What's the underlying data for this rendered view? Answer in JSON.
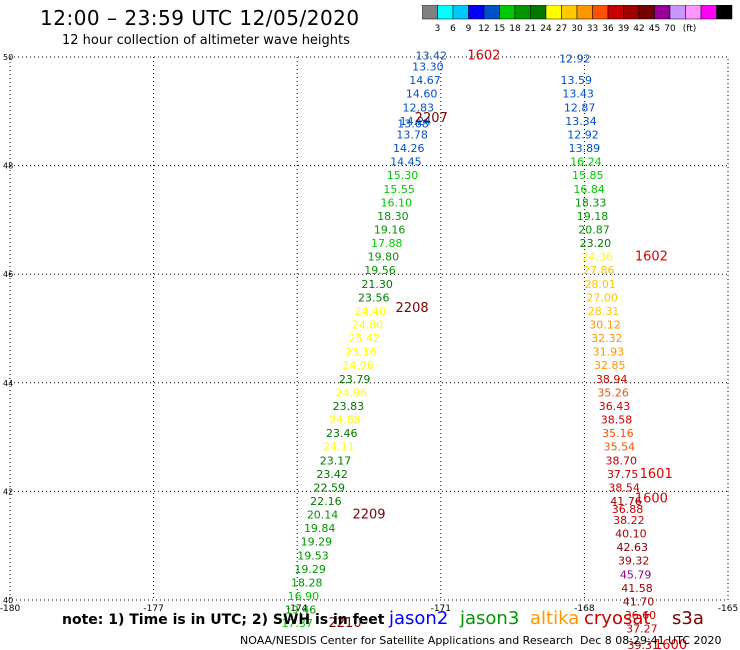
{
  "header": {
    "title": "12:00 – 23:59 UTC 12/05/2020",
    "subtitle": "12 hour collection of altimeter wave heights"
  },
  "colorbar": {
    "colors": [
      "#808080",
      "#00ffff",
      "#00c8ff",
      "#0000ff",
      "#0050c8",
      "#00c800",
      "#009600",
      "#007800",
      "#ffff00",
      "#ffc800",
      "#ff9600",
      "#ff5000",
      "#c80000",
      "#a00000",
      "#780000",
      "#960096",
      "#c896ff",
      "#ff96ff",
      "#ff00ff",
      "#000000"
    ],
    "labels": [
      "3",
      "6",
      "9",
      "12",
      "15",
      "18",
      "21",
      "24",
      "27",
      "30",
      "33",
      "36",
      "39",
      "42",
      "45",
      "70",
      "(ft)"
    ]
  },
  "chart_data": {
    "type": "scatter",
    "xlim": [
      -180,
      -165
    ],
    "ylim": [
      40,
      50
    ],
    "x_ticks": [
      "-180",
      "-177",
      "-174",
      "-171",
      "-168",
      "-165"
    ],
    "y_ticks": [
      "40",
      "42",
      "44",
      "46",
      "48",
      "50"
    ],
    "grid": true,
    "series": [
      {
        "name": "jason3",
        "points": [
          {
            "x": -171.2,
            "y": 49.95,
            "v": "13.42"
          },
          {
            "x": -171.27,
            "y": 49.75,
            "v": "13.30"
          },
          {
            "x": -171.33,
            "y": 49.5,
            "v": "14.67"
          },
          {
            "x": -171.4,
            "y": 49.25,
            "v": "14.60"
          },
          {
            "x": -171.47,
            "y": 49.0,
            "v": "12.83"
          },
          {
            "x": -171.53,
            "y": 48.75,
            "v": "14.24"
          },
          {
            "x": -171.58,
            "y": 48.7,
            "v": "13.68"
          },
          {
            "x": -171.6,
            "y": 48.5,
            "v": "13.78"
          },
          {
            "x": -171.67,
            "y": 48.25,
            "v": "14.26"
          },
          {
            "x": -171.73,
            "y": 48.0,
            "v": "14.45"
          },
          {
            "x": -171.8,
            "y": 47.75,
            "v": "15.30"
          },
          {
            "x": -171.87,
            "y": 47.5,
            "v": "15.55"
          },
          {
            "x": -171.93,
            "y": 47.25,
            "v": "16.10"
          },
          {
            "x": -172.0,
            "y": 47.0,
            "v": "18.30"
          },
          {
            "x": -172.07,
            "y": 46.75,
            "v": "19.16"
          },
          {
            "x": -172.13,
            "y": 46.5,
            "v": "17.88"
          },
          {
            "x": -172.2,
            "y": 46.25,
            "v": "19.80"
          },
          {
            "x": -172.27,
            "y": 46.0,
            "v": "19.56"
          },
          {
            "x": -172.33,
            "y": 45.75,
            "v": "21.30"
          },
          {
            "x": -172.4,
            "y": 45.5,
            "v": "23.56"
          },
          {
            "x": -172.47,
            "y": 45.25,
            "v": "24.40"
          },
          {
            "x": -172.53,
            "y": 45.0,
            "v": "24.80"
          },
          {
            "x": -172.6,
            "y": 44.75,
            "v": "25.42"
          },
          {
            "x": -172.67,
            "y": 44.5,
            "v": "25.16"
          },
          {
            "x": -172.73,
            "y": 44.25,
            "v": "24.96"
          },
          {
            "x": -172.8,
            "y": 44.0,
            "v": "23.79"
          },
          {
            "x": -172.87,
            "y": 43.75,
            "v": "24.96"
          },
          {
            "x": -172.93,
            "y": 43.5,
            "v": "23.83"
          },
          {
            "x": -173.0,
            "y": 43.25,
            "v": "24.88"
          },
          {
            "x": -173.07,
            "y": 43.0,
            "v": "23.46"
          },
          {
            "x": -173.13,
            "y": 42.75,
            "v": "24.11"
          },
          {
            "x": -173.2,
            "y": 42.5,
            "v": "23.17"
          },
          {
            "x": -173.27,
            "y": 42.25,
            "v": "23.42"
          },
          {
            "x": -173.33,
            "y": 42.0,
            "v": "22.59"
          },
          {
            "x": -173.4,
            "y": 41.75,
            "v": "22.16"
          },
          {
            "x": -173.47,
            "y": 41.5,
            "v": "20.14"
          },
          {
            "x": -173.53,
            "y": 41.25,
            "v": "19.84"
          },
          {
            "x": -173.6,
            "y": 41.0,
            "v": "19.29"
          },
          {
            "x": -173.67,
            "y": 40.75,
            "v": "19.53"
          },
          {
            "x": -173.73,
            "y": 40.5,
            "v": "19.29"
          },
          {
            "x": -173.8,
            "y": 40.25,
            "v": "18.28"
          },
          {
            "x": -173.87,
            "y": 40.0,
            "v": "16.90"
          },
          {
            "x": -173.93,
            "y": 39.75,
            "v": "19.46"
          },
          {
            "x": -174.0,
            "y": 39.5,
            "v": "17.37"
          }
        ]
      },
      {
        "name": "cryosat",
        "points": [
          {
            "x": -168.2,
            "y": 49.9,
            "v": "12.92"
          },
          {
            "x": -168.17,
            "y": 49.5,
            "v": "13.59"
          },
          {
            "x": -168.13,
            "y": 49.25,
            "v": "13.43"
          },
          {
            "x": -168.1,
            "y": 49.0,
            "v": "12.87"
          },
          {
            "x": -168.07,
            "y": 48.75,
            "v": "13.34"
          },
          {
            "x": -168.03,
            "y": 48.5,
            "v": "12.92"
          },
          {
            "x": -168.0,
            "y": 48.25,
            "v": "13.89"
          },
          {
            "x": -167.97,
            "y": 48.0,
            "v": "16.24"
          },
          {
            "x": -167.93,
            "y": 47.75,
            "v": "15.85"
          },
          {
            "x": -167.9,
            "y": 47.5,
            "v": "16.84"
          },
          {
            "x": -167.87,
            "y": 47.25,
            "v": "18.33"
          },
          {
            "x": -167.83,
            "y": 47.0,
            "v": "19.18"
          },
          {
            "x": -167.8,
            "y": 46.75,
            "v": "20.87"
          },
          {
            "x": -167.77,
            "y": 46.5,
            "v": "23.20"
          },
          {
            "x": -167.73,
            "y": 46.25,
            "v": "24.36"
          },
          {
            "x": -167.7,
            "y": 46.0,
            "v": "27.86"
          },
          {
            "x": -167.67,
            "y": 45.75,
            "v": "28.01"
          },
          {
            "x": -167.63,
            "y": 45.5,
            "v": "27.00"
          },
          {
            "x": -167.6,
            "y": 45.25,
            "v": "28.31"
          },
          {
            "x": -167.57,
            "y": 45.0,
            "v": "30.12"
          },
          {
            "x": -167.53,
            "y": 44.75,
            "v": "32.32"
          },
          {
            "x": -167.5,
            "y": 44.5,
            "v": "31.93"
          },
          {
            "x": -167.47,
            "y": 44.25,
            "v": "32.85"
          },
          {
            "x": -167.43,
            "y": 44.0,
            "v": "38.94"
          },
          {
            "x": -167.4,
            "y": 43.75,
            "v": "35.26"
          },
          {
            "x": -167.37,
            "y": 43.5,
            "v": "36.43"
          },
          {
            "x": -167.33,
            "y": 43.25,
            "v": "38.58"
          },
          {
            "x": -167.3,
            "y": 43.0,
            "v": "35.16"
          },
          {
            "x": -167.27,
            "y": 42.75,
            "v": "35.54"
          },
          {
            "x": -167.23,
            "y": 42.5,
            "v": "38.70"
          },
          {
            "x": -167.2,
            "y": 42.25,
            "v": "37.75"
          },
          {
            "x": -167.17,
            "y": 42.0,
            "v": "38.54"
          },
          {
            "x": -167.13,
            "y": 41.75,
            "v": "41.76"
          },
          {
            "x": -167.1,
            "y": 41.6,
            "v": "36.88"
          },
          {
            "x": -167.07,
            "y": 41.4,
            "v": "38.22"
          },
          {
            "x": -167.03,
            "y": 41.15,
            "v": "40.10"
          },
          {
            "x": -167.0,
            "y": 40.9,
            "v": "42.63"
          },
          {
            "x": -166.97,
            "y": 40.65,
            "v": "39.32"
          },
          {
            "x": -166.93,
            "y": 40.4,
            "v": "45.79"
          },
          {
            "x": -166.9,
            "y": 40.15,
            "v": "41.58"
          },
          {
            "x": -166.87,
            "y": 39.9,
            "v": "41.70"
          },
          {
            "x": -166.83,
            "y": 39.65,
            "v": "36.60"
          },
          {
            "x": -166.8,
            "y": 39.4,
            "v": "37.27"
          },
          {
            "x": -166.77,
            "y": 39.1,
            "v": "39.31"
          }
        ]
      }
    ],
    "time_labels": [
      {
        "x": -170.1,
        "y": 49.95,
        "text": "1602",
        "color": "#e00000"
      },
      {
        "x": -171.2,
        "y": 48.8,
        "text": "2207",
        "color": "#800000"
      },
      {
        "x": -166.6,
        "y": 46.25,
        "text": "1602",
        "color": "#e00000"
      },
      {
        "x": -171.6,
        "y": 45.3,
        "text": "2208",
        "color": "#800000"
      },
      {
        "x": -166.5,
        "y": 42.25,
        "text": "1601",
        "color": "#e00000"
      },
      {
        "x": -166.6,
        "y": 41.8,
        "text": "1600",
        "color": "#e00000"
      },
      {
        "x": -172.5,
        "y": 41.5,
        "text": "2209",
        "color": "#800000"
      },
      {
        "x": -166.2,
        "y": 39.1,
        "text": "1600",
        "color": "#e00000"
      },
      {
        "x": -173.0,
        "y": 39.5,
        "text": "2210",
        "color": "#800000"
      }
    ]
  },
  "footer": {
    "note": "note: 1) Time is in UTC; 2) SWH is in feet",
    "legend": [
      {
        "label": "jason2",
        "color": "#0000ff"
      },
      {
        "label": "jason3",
        "color": "#009600"
      },
      {
        "label": "altika",
        "color": "#ff9600"
      },
      {
        "label": "cryosat",
        "color": "#c80000"
      },
      {
        "label": "s3a",
        "color": "#800000"
      }
    ],
    "credit": "NOAA/NESDIS Center for Satellite Applications and Research",
    "stamp": "Dec  8 08:29:41 UTC 2020"
  }
}
